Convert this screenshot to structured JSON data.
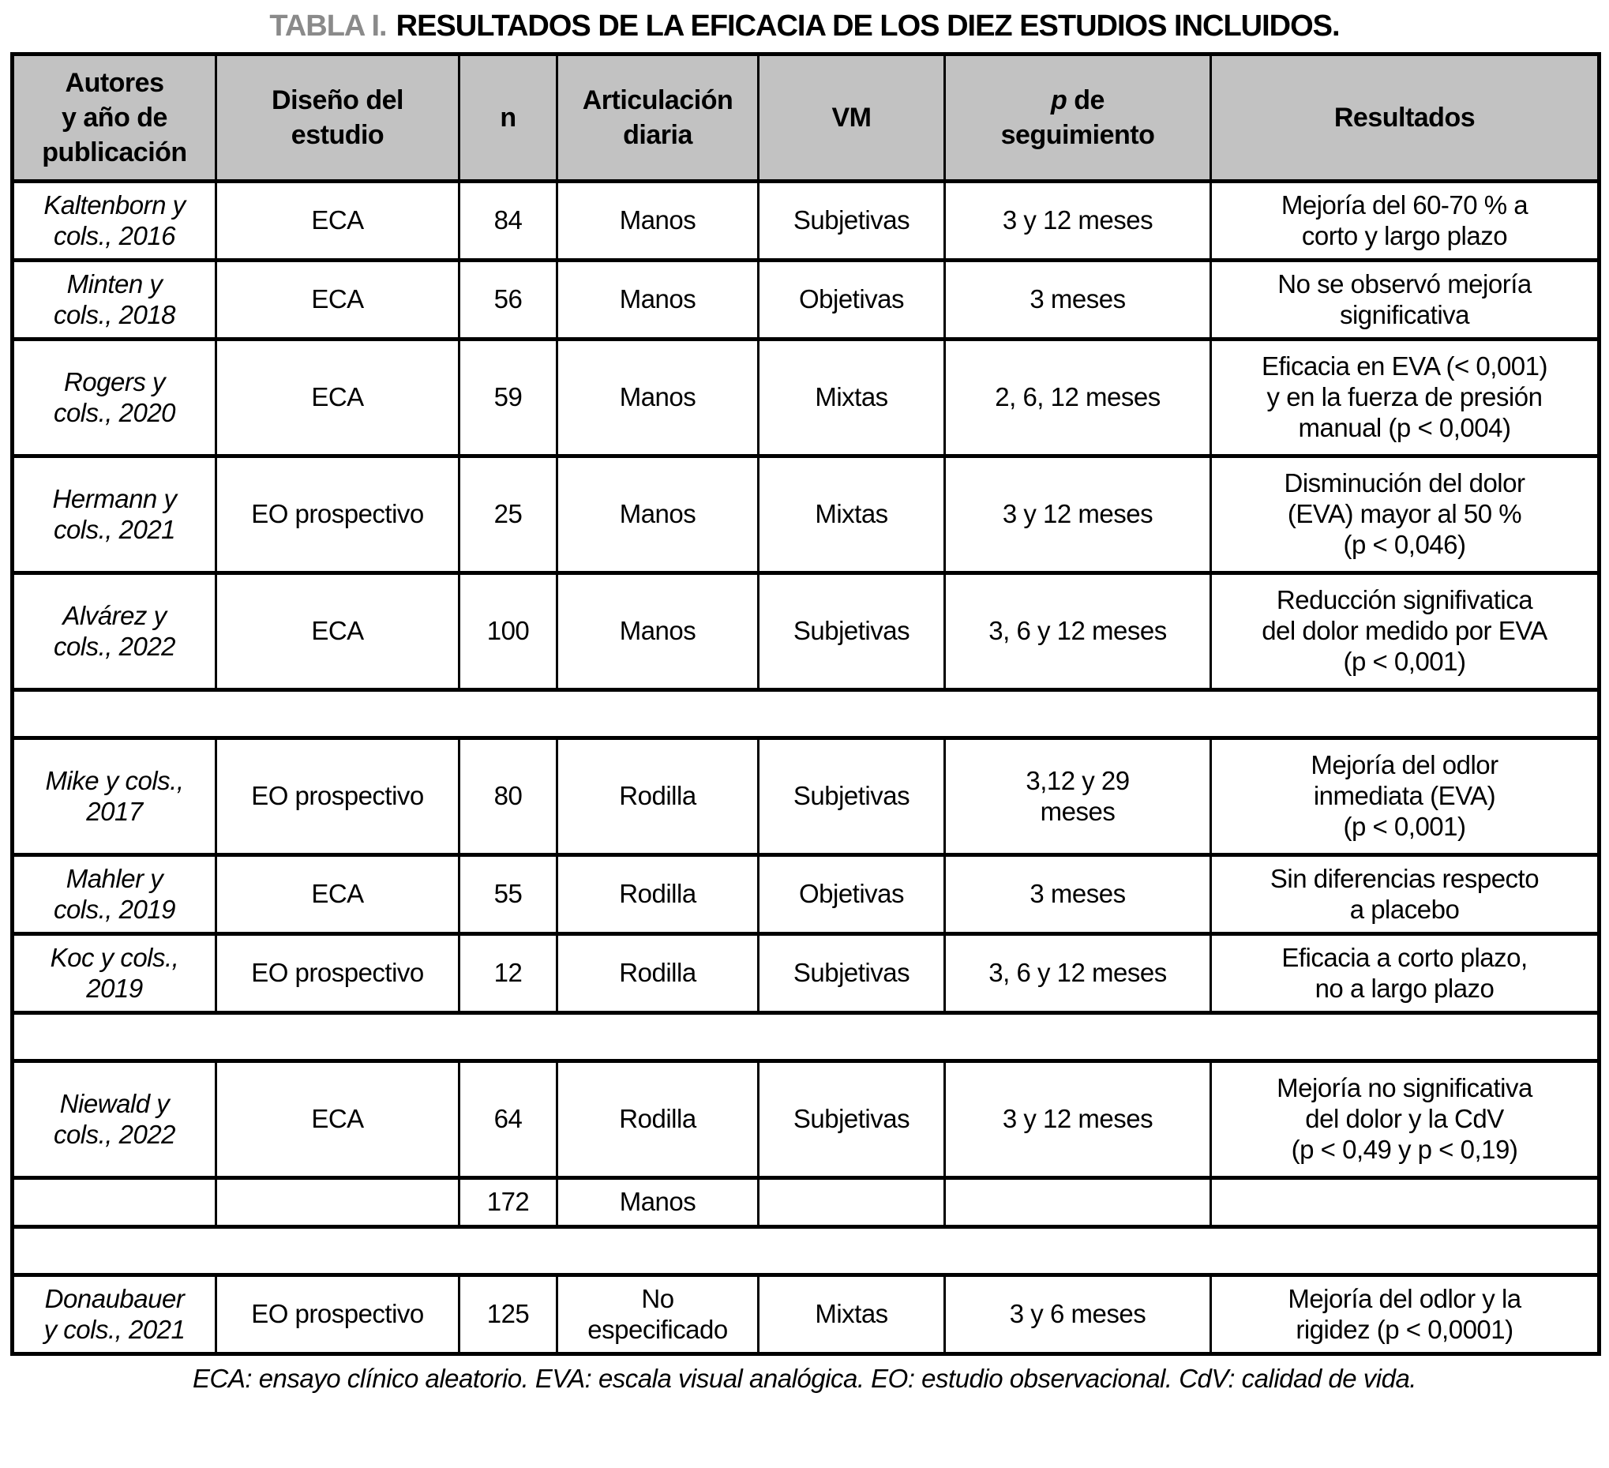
{
  "title": {
    "label": "TABLA I.",
    "text": "RESULTADOS DE LA EFICACIA DE LOS DIEZ ESTUDIOS INCLUIDOS."
  },
  "colors": {
    "header_bg": "#c2c2c2",
    "title_label": "#8a8a8a",
    "border": "#000000"
  },
  "header": {
    "authors": "Autores\ny año de\npublicación",
    "design": "Diseño del\nestudio",
    "n": "n",
    "joint": "Articulación\ndiaria",
    "vm": "VM",
    "p_italic": "p",
    "p_rest": " de\nseguimiento",
    "results": "Resultados"
  },
  "rows": [
    {
      "type": "data",
      "author": "Kaltenborn y\ncols., 2016",
      "design": "ECA",
      "n": "84",
      "joint": "Manos",
      "vm": "Subjetivas",
      "followup": "3 y 12 meses",
      "results": "Mejoría del 60-70 % a\ncorto y largo plazo"
    },
    {
      "type": "data",
      "author": "Minten y\ncols., 2018",
      "design": "ECA",
      "n": "56",
      "joint": "Manos",
      "vm": "Objetivas",
      "followup": "3 meses",
      "results": "No se observó mejoría\nsignificativa"
    },
    {
      "type": "data",
      "author": "Rogers y\ncols., 2020",
      "design": "ECA",
      "n": "59",
      "joint": "Manos",
      "vm": "Mixtas",
      "followup": "2, 6, 12 meses",
      "results": "Eficacia en EVA (< 0,001)\ny en la fuerza de presión\nmanual (p < 0,004)"
    },
    {
      "type": "data",
      "author": "Hermann y\ncols., 2021",
      "design": "EO prospectivo",
      "n": "25",
      "joint": "Manos",
      "vm": "Mixtas",
      "followup": "3 y 12 meses",
      "results": "Disminución del dolor\n(EVA) mayor al 50 %\n(p < 0,046)"
    },
    {
      "type": "data",
      "author": "Alvárez y\ncols., 2022",
      "design": "ECA",
      "n": "100",
      "joint": "Manos",
      "vm": "Subjetivas",
      "followup": "3, 6 y 12 meses",
      "results": "Reducción signifivatica\ndel dolor medido por EVA\n(p < 0,001)"
    },
    {
      "type": "separator"
    },
    {
      "type": "data",
      "author": "Mike y cols.,\n2017",
      "design": "EO prospectivo",
      "n": "80",
      "joint": "Rodilla",
      "vm": "Subjetivas",
      "followup": "3,12 y 29\nmeses",
      "results": "Mejoría del odlor\ninmediata (EVA)\n(p < 0,001)"
    },
    {
      "type": "data",
      "author": "Mahler y\ncols., 2019",
      "design": "ECA",
      "n": "55",
      "joint": "Rodilla",
      "vm": "Objetivas",
      "followup": "3 meses",
      "results": "Sin diferencias respecto\na placebo"
    },
    {
      "type": "data",
      "author": "Koc y cols.,\n2019",
      "design": "EO prospectivo",
      "n": "12",
      "joint": "Rodilla",
      "vm": "Subjetivas",
      "followup": "3, 6 y 12 meses",
      "results": "Eficacia a corto plazo,\nno a largo plazo"
    },
    {
      "type": "separator"
    },
    {
      "type": "data",
      "author": "Niewald y\ncols., 2022",
      "design": "ECA",
      "n": "64",
      "joint": "Rodilla",
      "vm": "Subjetivas",
      "followup": "3 y 12 meses",
      "results": "Mejoría no significativa\ndel dolor y la CdV\n(p < 0,49 y p < 0,19)"
    },
    {
      "type": "data",
      "author": "",
      "design": "",
      "n": "172",
      "joint": "Manos",
      "vm": "",
      "followup": "",
      "results": ""
    },
    {
      "type": "separator"
    },
    {
      "type": "data",
      "author": "Donaubauer\ny cols., 2021",
      "design": "EO prospectivo",
      "n": "125",
      "joint": "No\nespecificado",
      "vm": "Mixtas",
      "followup": "3 y 6 meses",
      "results": "Mejoría del odlor y la\nrigidez (p < 0,0001)"
    }
  ],
  "footnote": "ECA: ensayo clínico aleatorio. EVA: escala visual analógica. EO: estudio observacional. CdV: calidad de vida."
}
